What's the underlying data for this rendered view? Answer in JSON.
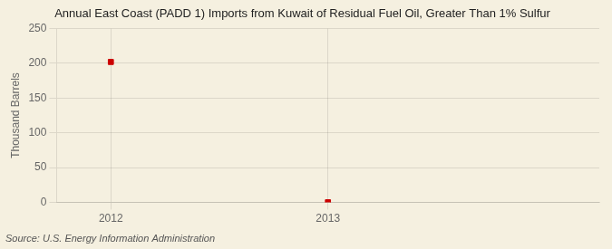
{
  "chart_data": {
    "type": "scatter",
    "title": "Annual East Coast (PADD 1) Imports from Kuwait of Residual Fuel Oil, Greater Than 1% Sulfur",
    "ylabel": "Thousand Barrels",
    "annotations": [
      "Source: U.S. Energy Information Administration"
    ],
    "x": [
      2012,
      2013
    ],
    "values": [
      202,
      0
    ],
    "color": "#cc0000",
    "marker": "square",
    "xlim": [
      2011.75,
      2014.25
    ],
    "ylim": [
      0,
      250
    ],
    "xticks": [
      2012,
      2013
    ],
    "yticks": [
      0,
      50,
      100,
      150,
      200,
      250
    ],
    "grid": true
  }
}
